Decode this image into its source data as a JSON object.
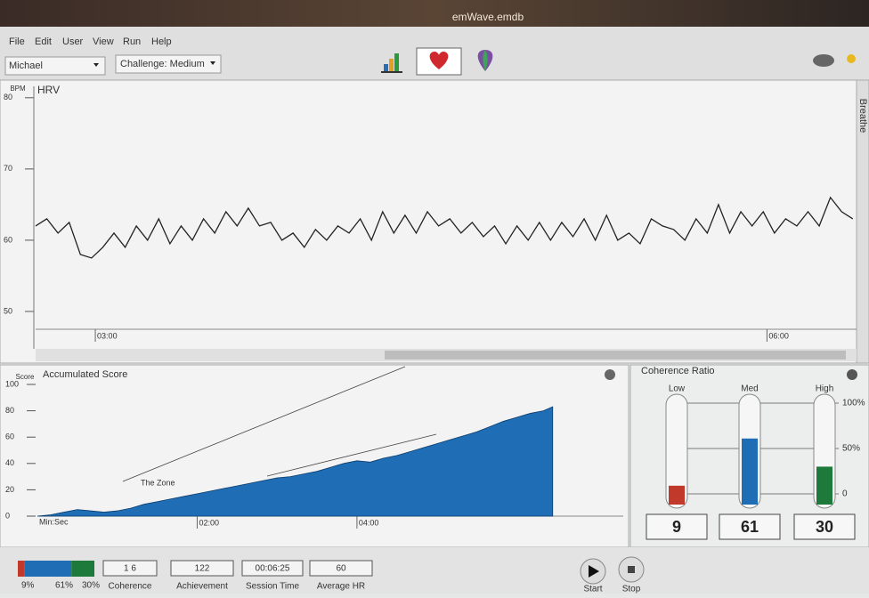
{
  "window": {
    "title": "emWave.emdb"
  },
  "menu": [
    "File",
    "Edit",
    "User",
    "View",
    "Run",
    "Help"
  ],
  "toolbar": {
    "user": "Michael",
    "challenge": "Challenge: Medium"
  },
  "chart_data": [
    {
      "type": "line",
      "title": "HRV",
      "y_label": "BPM",
      "side_tab": "Breathe",
      "color": "#222222",
      "x": [
        164,
        167,
        170,
        173,
        176,
        179,
        182,
        185,
        188,
        191,
        194,
        197,
        200,
        203,
        206,
        209,
        212,
        215,
        218,
        221,
        224,
        227,
        230,
        233,
        236,
        239,
        242,
        245,
        248,
        251,
        254,
        257,
        260,
        263,
        266,
        269,
        272,
        275,
        278,
        281,
        284,
        287,
        290,
        293,
        296,
        299,
        302,
        305,
        308,
        311,
        314,
        317,
        320,
        323,
        326,
        329,
        332,
        335,
        338,
        341,
        344,
        347,
        350,
        353,
        356,
        359,
        362,
        365,
        368,
        371,
        374,
        377,
        380,
        383
      ],
      "values": [
        62,
        63,
        61,
        62.5,
        58,
        57.5,
        59,
        61,
        59,
        62,
        60,
        63,
        59.5,
        62,
        60,
        63,
        61,
        64,
        62,
        64.5,
        62,
        62.5,
        60,
        61,
        59,
        61.5,
        60,
        62,
        61,
        63,
        60,
        64,
        61,
        63.5,
        61,
        64,
        62,
        63,
        61,
        62.5,
        60.5,
        62,
        59.5,
        62,
        60,
        62.5,
        60,
        62.5,
        60.5,
        63,
        60,
        63.5,
        60,
        61,
        59.5,
        63,
        62,
        61.5,
        60,
        63,
        61,
        65,
        61,
        64,
        62,
        64,
        61,
        63,
        62,
        64,
        62,
        66,
        64,
        63
      ],
      "xlim": [
        164,
        384
      ],
      "ylim": [
        47.5,
        81.6
      ],
      "xticks": [
        {
          "value": 180,
          "label": "03:00"
        },
        {
          "value": 360,
          "label": "06:00"
        }
      ],
      "yticks": [
        50,
        60,
        70,
        80
      ]
    },
    {
      "type": "area",
      "title": "Accumulated Score",
      "y_label": "Score",
      "x_label": "Min:Sec",
      "annotation": "The Zone",
      "color": "#1f6db5",
      "x": [
        0,
        10,
        20,
        30,
        40,
        50,
        60,
        70,
        80,
        90,
        100,
        110,
        120,
        130,
        140,
        150,
        160,
        170,
        180,
        190,
        200,
        210,
        220,
        230,
        240,
        250,
        260,
        270,
        280,
        290,
        300,
        310,
        320,
        330,
        340,
        350,
        360,
        370,
        380,
        387
      ],
      "values": [
        0,
        1,
        3,
        5,
        4,
        3,
        4,
        6,
        9,
        11,
        13,
        15,
        17,
        19,
        21,
        23,
        25,
        27,
        29,
        30,
        32,
        34,
        37,
        40,
        42,
        41,
        44,
        46,
        49,
        52,
        55,
        58,
        61,
        64,
        68,
        72,
        75,
        78,
        80,
        83
      ],
      "xlim": [
        0,
        440
      ],
      "ylim": [
        0,
        100
      ],
      "xticks": [
        {
          "value": 120,
          "label": "02:00"
        },
        {
          "value": 240,
          "label": "04:00"
        }
      ],
      "yticks": [
        0,
        20,
        40,
        60,
        80,
        100
      ]
    },
    {
      "type": "bar",
      "title": "Coherence Ratio",
      "categories": [
        "Low",
        "Med",
        "High"
      ],
      "values": [
        9,
        61,
        30
      ],
      "colors": [
        "#c0392b",
        "#1f6db5",
        "#1e7a3a"
      ],
      "ylim": [
        0,
        100
      ],
      "yticks": [
        0,
        {
          "value": 50,
          "label": "50%"
        },
        {
          "value": 100,
          "label": "100%"
        }
      ]
    }
  ],
  "status": {
    "ratio": {
      "values": [
        9,
        61,
        30
      ],
      "value_labels": [
        "9%",
        "61%",
        "30%"
      ],
      "colors": [
        "#c0392b",
        "#1f6db5",
        "#1e7a3a"
      ]
    },
    "fields": [
      {
        "value": "1 6",
        "label": "Coherence"
      },
      {
        "value": 122,
        "label": "Achievement"
      },
      {
        "value": "00:06:25",
        "label": "Session Time"
      },
      {
        "value": 60,
        "label": "Average HR"
      }
    ],
    "buttons": [
      "Start",
      "Stop"
    ]
  }
}
